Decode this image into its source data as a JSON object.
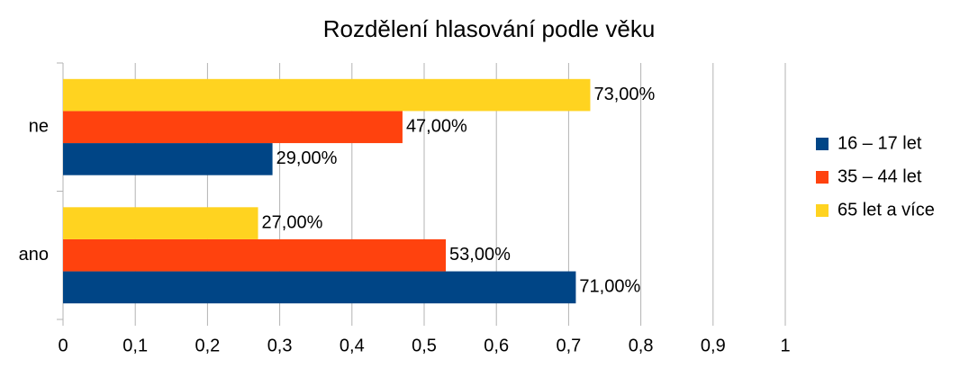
{
  "chart_data": {
    "type": "bar",
    "orientation": "horizontal",
    "title": "Rozdělení hlasování podle věku",
    "categories": [
      "ne",
      "ano"
    ],
    "series": [
      {
        "name": "16 – 17 let",
        "color": "#004586",
        "values": [
          0.29,
          0.71
        ],
        "value_labels": [
          "29,00%",
          "71,00%"
        ]
      },
      {
        "name": "35 – 44 let",
        "color": "#ff420e",
        "values": [
          0.47,
          0.53
        ],
        "value_labels": [
          "47,00%",
          "53,00%"
        ]
      },
      {
        "name": "65 let a více",
        "color": "#ffd320",
        "values": [
          0.73,
          0.27
        ],
        "value_labels": [
          "73,00%",
          "27,00%"
        ]
      }
    ],
    "xlim": [
      0,
      1
    ],
    "xticks": [
      0,
      {
        "value": 0.1,
        "label": "0,1"
      },
      {
        "value": 0.2,
        "label": "0,2"
      },
      {
        "value": 0.3,
        "label": "0,3"
      },
      {
        "value": 0.4,
        "label": "0,4"
      },
      {
        "value": 0.5,
        "label": "0,5"
      },
      {
        "value": 0.6,
        "label": "0,6"
      },
      {
        "value": 0.7,
        "label": "0,7"
      },
      {
        "value": 0.8,
        "label": "0,8"
      },
      {
        "value": 0.9,
        "label": "0,9"
      },
      1
    ],
    "grid": true,
    "legend": "right"
  }
}
